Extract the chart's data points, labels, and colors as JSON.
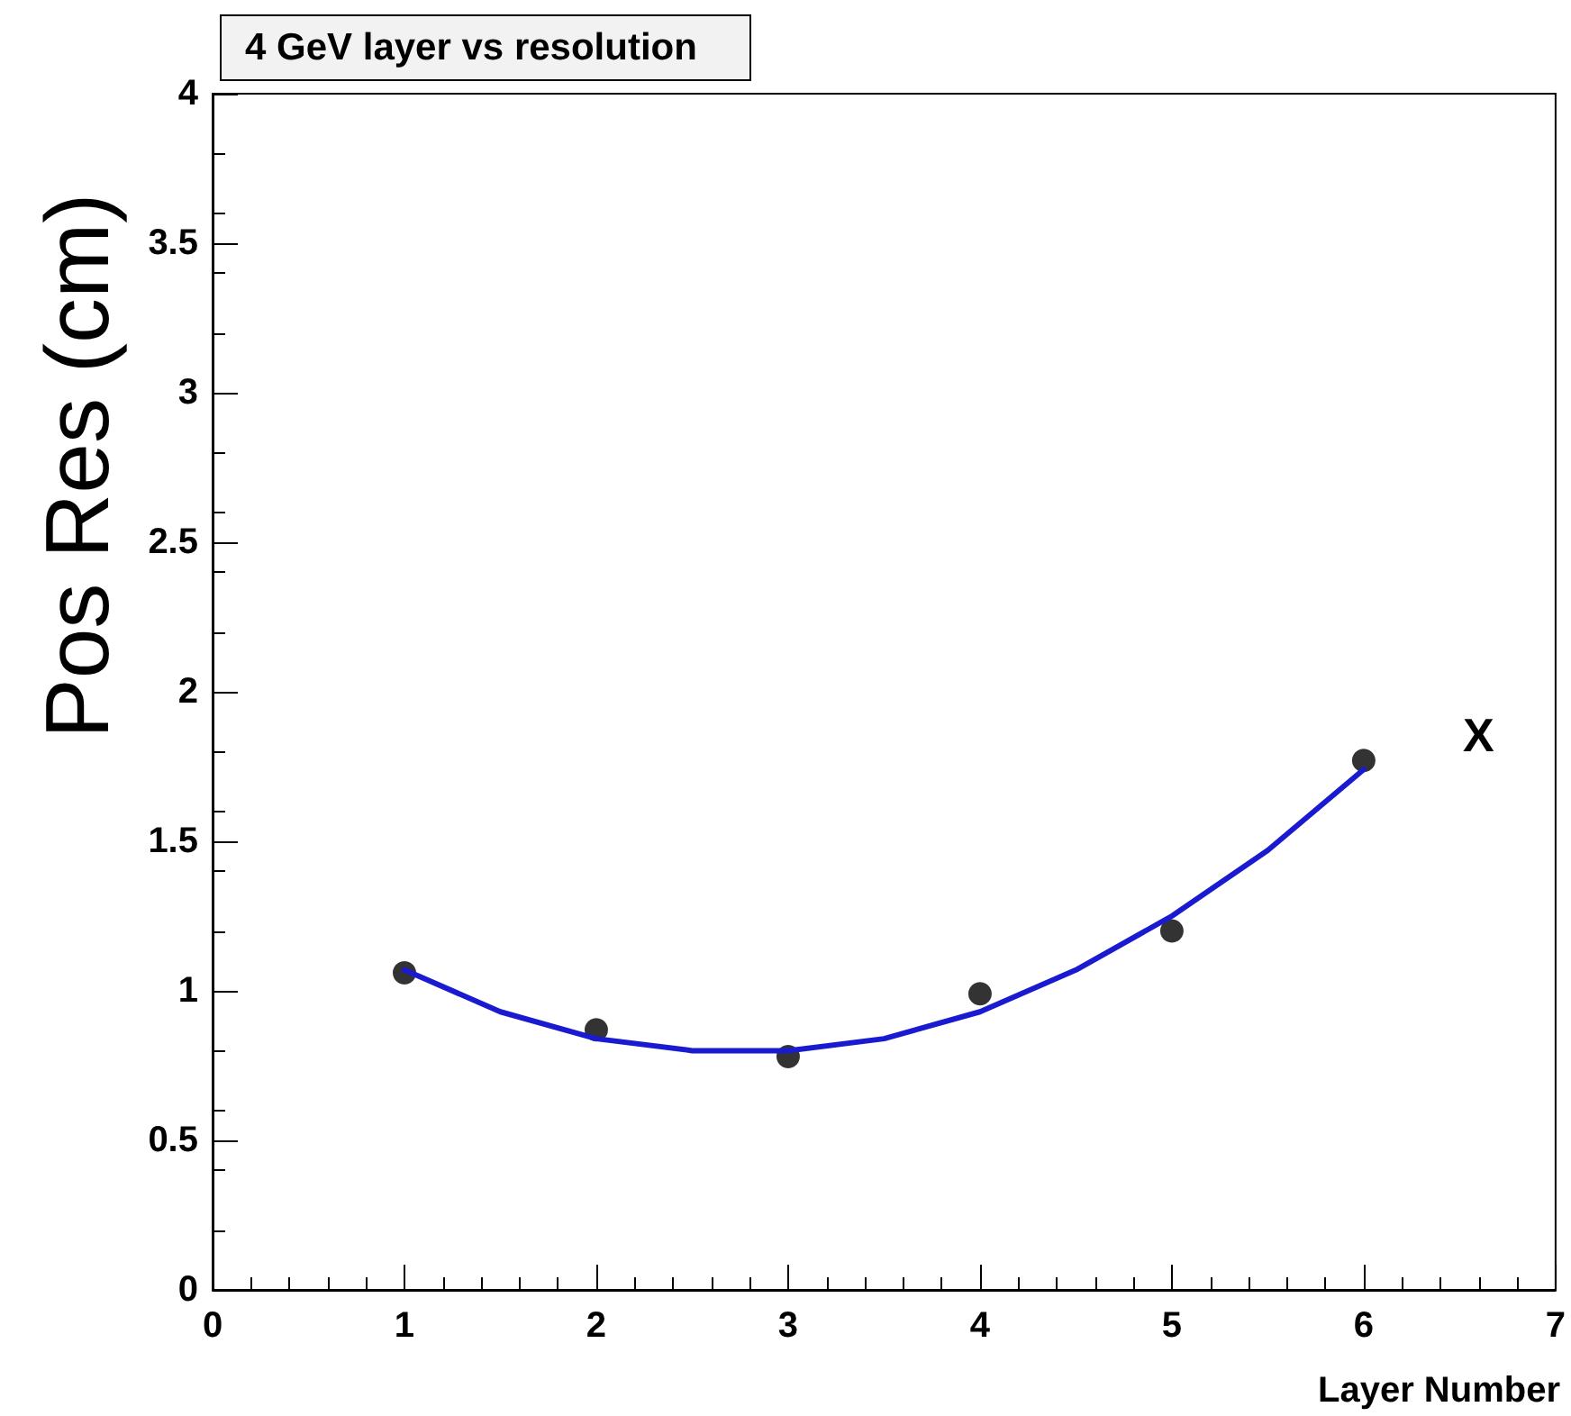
{
  "chart_data": {
    "type": "scatter",
    "title": "4 GeV layer vs resolution",
    "xlabel": "Layer Number",
    "ylabel": "Pos Res (cm)",
    "annotations": [
      "X"
    ],
    "xlim": [
      0,
      7
    ],
    "xticks": [
      0,
      1,
      2,
      3,
      4,
      5,
      6,
      7
    ],
    "ylim": [
      0,
      4
    ],
    "yticks": [
      0,
      0.5,
      1,
      1.5,
      2,
      2.5,
      3,
      3.5,
      4
    ],
    "grid": false,
    "series": [
      {
        "marker": "circle",
        "color": "#000000",
        "x": [
          1,
          2,
          3,
          4,
          5,
          6
        ],
        "values": [
          1.06,
          0.87,
          0.78,
          0.99,
          1.2,
          1.77
        ]
      },
      {
        "type": "line",
        "marker": "none",
        "color": "#1a1ad0",
        "x": [
          1,
          1.5,
          2,
          2.5,
          3,
          3.5,
          4,
          4.5,
          5,
          5.5,
          6
        ],
        "values": [
          1.07,
          0.93,
          0.84,
          0.8,
          0.8,
          0.84,
          0.93,
          1.07,
          1.25,
          1.47,
          1.74
        ]
      }
    ]
  }
}
